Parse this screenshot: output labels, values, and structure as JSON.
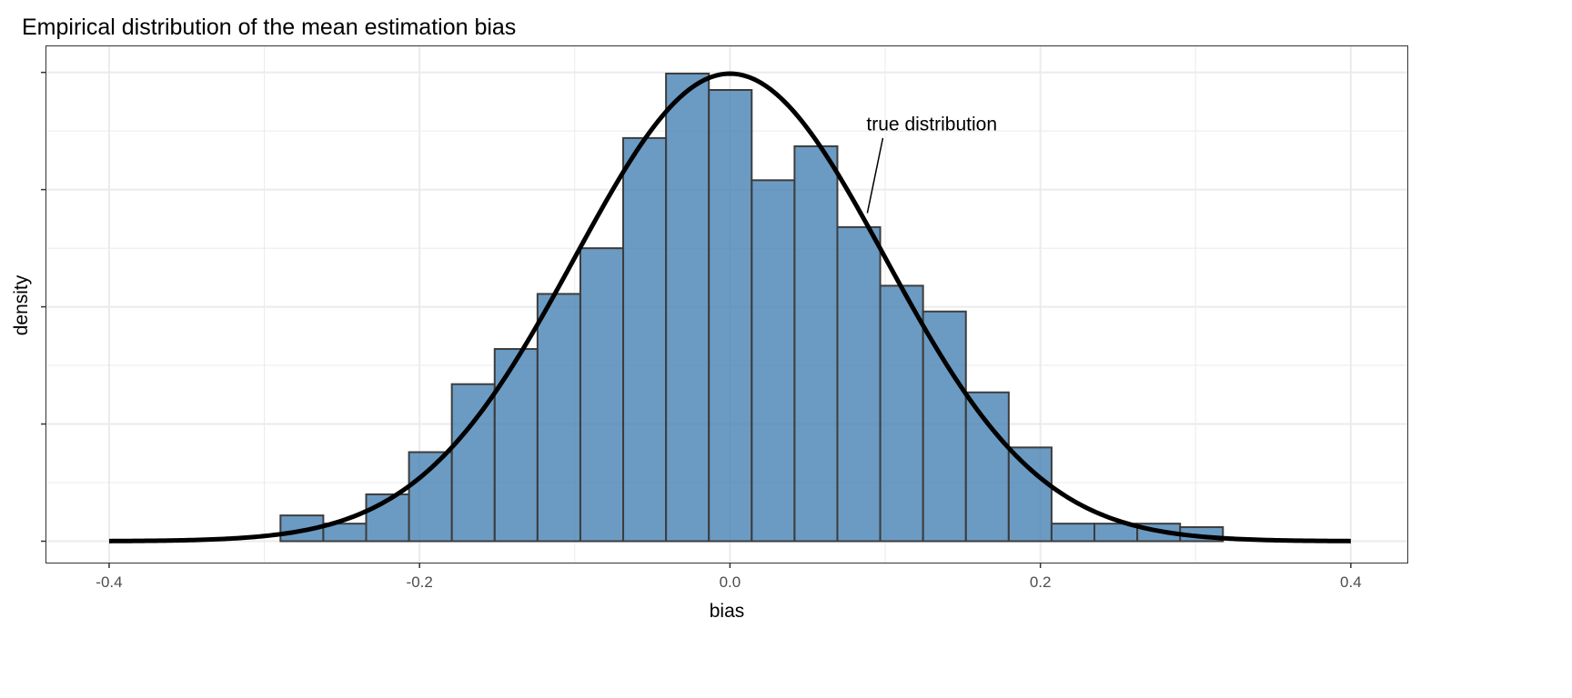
{
  "chart_data": {
    "type": "histogram",
    "title": "Empirical distribution of the mean estimation bias",
    "xlabel": "bias",
    "ylabel": "density",
    "xlim": [
      -0.441,
      0.437
    ],
    "ylim": [
      -0.19,
      4.23
    ],
    "x_ticks": [
      -0.4,
      -0.2,
      0.0,
      0.2,
      0.4
    ],
    "x_tick_labels": [
      "-0.4",
      "-0.2",
      "0.0",
      "0.2",
      "0.4"
    ],
    "y_ticks": [
      0,
      1,
      2,
      3,
      4
    ],
    "y_tick_labels_shown": false,
    "grid": true,
    "bins": {
      "start": -0.2896,
      "width": 0.0276,
      "density": [
        0.22,
        0.15,
        0.4,
        0.76,
        1.34,
        1.64,
        2.11,
        2.5,
        3.44,
        3.99,
        3.85,
        3.08,
        3.37,
        2.68,
        2.18,
        1.96,
        1.27,
        0.8,
        0.15,
        0.15,
        0.15,
        0.12
      ]
    },
    "curve": {
      "label": "true distribution",
      "distribution": "normal",
      "mean": 0,
      "sd": 0.1,
      "x_range": [
        -0.4,
        0.4
      ]
    },
    "annotation": {
      "text": "true distribution",
      "text_at": [
        0.13,
        3.56
      ],
      "segment_from": [
        0.0985,
        3.44
      ],
      "segment_to": [
        0.0885,
        2.8
      ]
    },
    "colors": {
      "bar_fill": "#4682b4",
      "bar_fill_opacity": 0.8,
      "bar_outline": "#3d3d3d",
      "curve": "#000000",
      "grid": "#ebebeb",
      "panel_border": "#333333"
    }
  }
}
